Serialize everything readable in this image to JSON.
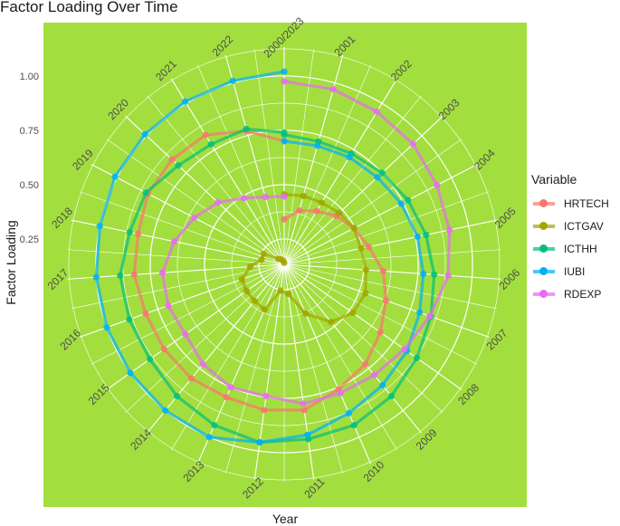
{
  "chart_data": {
    "type": "line",
    "coord": "polar",
    "title": "Factor Loading Over Time",
    "xlabel": "Year",
    "ylabel": "Factor Loading",
    "x": [
      2000,
      2001,
      2002,
      2003,
      2004,
      2005,
      2006,
      2007,
      2008,
      2009,
      2010,
      2011,
      2012,
      2013,
      2014,
      2015,
      2016,
      2017,
      2018,
      2019,
      2020,
      2021,
      2022,
      2023
    ],
    "x_tick_labels": [
      "2000/2023",
      "2001",
      "2002",
      "2003",
      "2004",
      "2005",
      "2006",
      "2007",
      "2008",
      "2009",
      "2010",
      "2011",
      "2012",
      "2013",
      "2014",
      "2015",
      "2016",
      "2017",
      "2018",
      "2019",
      "2020",
      "2021",
      "2022"
    ],
    "y_ticks": [
      0.25,
      0.5,
      0.75,
      1.0
    ],
    "y_tick_labels": [
      "0.25",
      "0.50",
      "0.75",
      "1.00"
    ],
    "ylim": [
      0.133,
      1.133
    ],
    "grid": true,
    "panel_background": "#a3de3f",
    "legend": {
      "title": "Variable",
      "position": "right"
    },
    "series": [
      {
        "name": "HRTECH",
        "color": "#F8766D",
        "values": [
          0.34,
          0.39,
          0.42,
          0.46,
          0.495,
          0.53,
          0.59,
          0.63,
          0.675,
          0.725,
          0.76,
          0.81,
          0.81,
          0.8,
          0.81,
          0.81,
          0.81,
          0.825,
          0.82,
          0.84,
          0.84,
          0.83,
          0.77,
          0.7
        ]
      },
      {
        "name": "ICTGAV",
        "color": "#A3A500",
        "values": [
          0.455,
          0.46,
          0.465,
          0.48,
          0.495,
          0.495,
          0.51,
          0.53,
          0.52,
          0.475,
          0.38,
          0.27,
          0.255,
          0.36,
          0.35,
          0.345,
          0.34,
          0.29,
          0.24,
          0.24,
          0.17,
          0.16,
          0.15,
          0.14
        ]
      },
      {
        "name": "ICTHH",
        "color": "#00BF7D",
        "values": [
          0.73,
          0.72,
          0.73,
          0.75,
          0.775,
          0.8,
          0.825,
          0.85,
          0.88,
          0.915,
          0.94,
          0.945,
          0.96,
          0.94,
          0.915,
          0.89,
          0.89,
          0.89,
          0.86,
          0.85,
          0.8,
          0.78,
          0.78,
          0.74
        ]
      },
      {
        "name": "IUBI",
        "color": "#00B0F6",
        "values": [
          0.7,
          0.7,
          0.71,
          0.72,
          0.74,
          0.76,
          0.775,
          0.795,
          0.825,
          0.85,
          0.88,
          0.925,
          0.96,
          1.0,
          1.0,
          1.0,
          1.0,
          1.0,
          1.0,
          1.01,
          1.01,
          1.01,
          1.01,
          1.02
        ]
      },
      {
        "name": "RDEXP",
        "color": "#E76BF3",
        "values": [
          0.975,
          0.97,
          0.955,
          0.945,
          0.925,
          0.91,
          0.89,
          0.845,
          0.81,
          0.79,
          0.78,
          0.78,
          0.745,
          0.75,
          0.725,
          0.69,
          0.7,
          0.695,
          0.65,
          0.6,
          0.55,
          0.49,
          0.455,
          0.445
        ]
      }
    ]
  }
}
